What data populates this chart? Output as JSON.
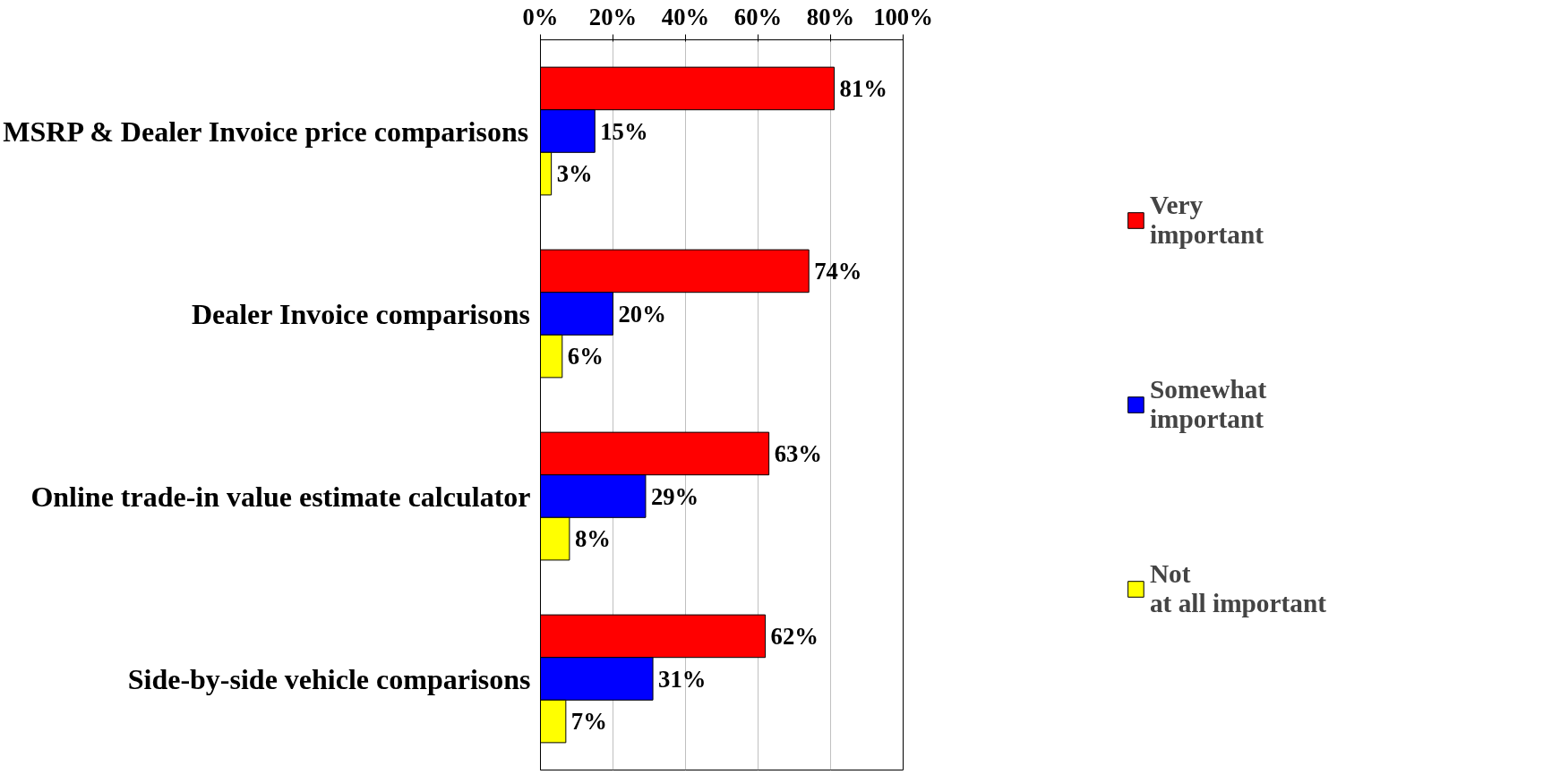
{
  "chart_data": {
    "type": "bar",
    "orientation": "horizontal",
    "categories": [
      "MSRP & Dealer Invoice price comparisons",
      "Dealer Invoice comparisons",
      "Online trade-in value estimate calculator",
      "Side-by-side vehicle comparisons"
    ],
    "series": [
      {
        "name": "Very important",
        "color": "#ff0000",
        "values": [
          81,
          74,
          63,
          62
        ],
        "value_labels": [
          "81%",
          "74%",
          "63%",
          "62%"
        ]
      },
      {
        "name": "Somewhat important",
        "color": "#0000ff",
        "values": [
          15,
          20,
          29,
          31
        ],
        "value_labels": [
          "15%",
          "20%",
          "29%",
          "31%"
        ]
      },
      {
        "name": "Not at all important",
        "color": "#ffff00",
        "values": [
          3,
          6,
          8,
          7
        ],
        "value_labels": [
          "3%",
          "6%",
          "8%",
          "7%"
        ]
      }
    ],
    "xlim": [
      0,
      100
    ],
    "xticks": [
      {
        "value": 0,
        "label": "0%"
      },
      {
        "value": 20,
        "label": "20%"
      },
      {
        "value": 40,
        "label": "40%"
      },
      {
        "value": 60,
        "label": "60%"
      },
      {
        "value": 80,
        "label": "80%"
      },
      {
        "value": 100,
        "label": "100%"
      }
    ],
    "grid": "x",
    "legend": "right"
  }
}
